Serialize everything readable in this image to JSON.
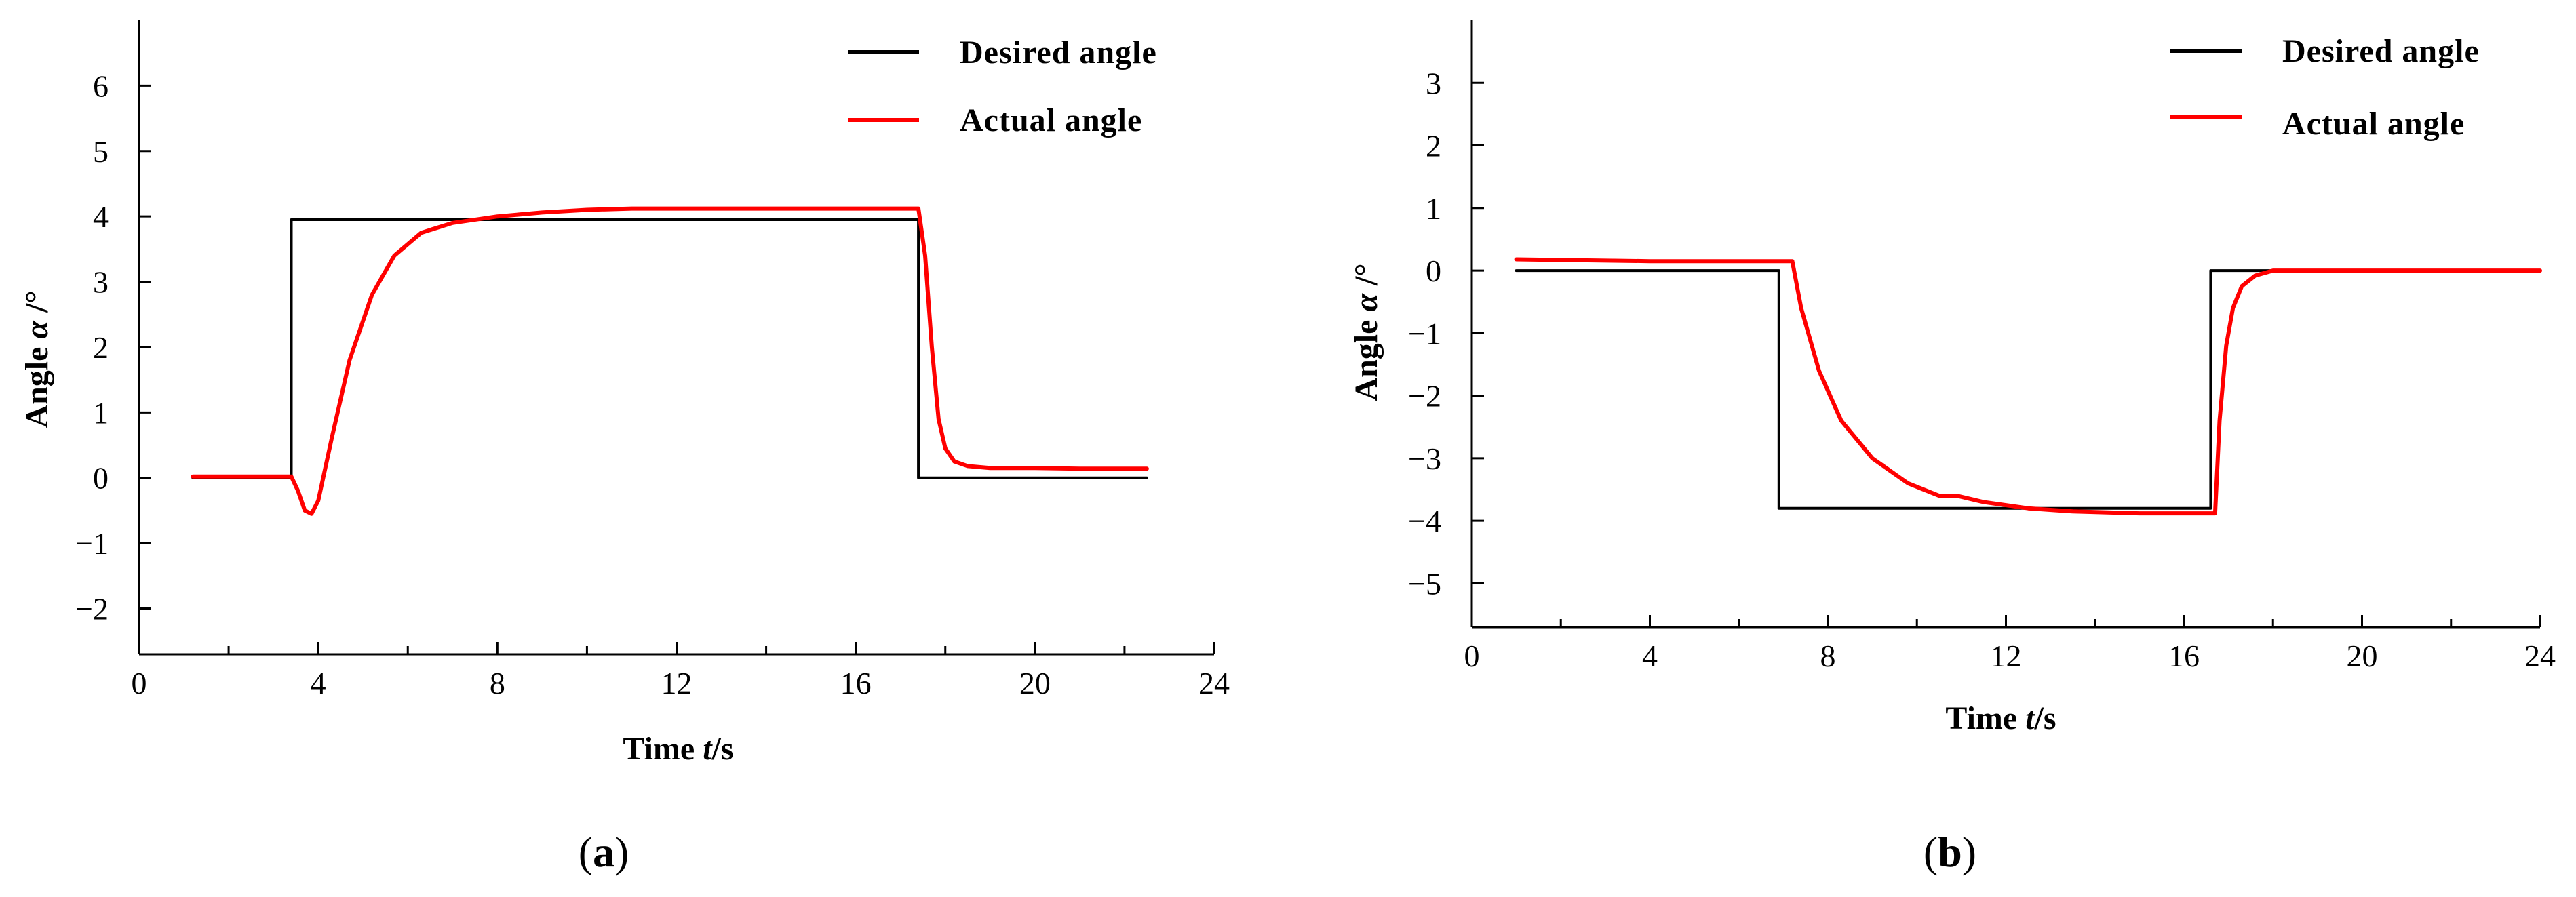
{
  "chart_data": [
    {
      "panel": "(a)",
      "type": "line",
      "xlabel": {
        "main": "Time ",
        "var": "t",
        "unit": "/s"
      },
      "ylabel": {
        "main": "Angle ",
        "var": "α",
        "unit": " /°"
      },
      "xlim": [
        0,
        24
      ],
      "ylim": [
        -2.7,
        7
      ],
      "xticks": [
        0,
        4,
        8,
        12,
        16,
        20,
        24
      ],
      "yticks": [
        -2,
        -1,
        0,
        1,
        2,
        3,
        4,
        5,
        6
      ],
      "legend": {
        "position": "top-right",
        "entries": [
          "Desired angle",
          "Actual angle"
        ]
      },
      "series": [
        {
          "name": "Desired angle",
          "color": "#000000",
          "x": [
            1.2,
            3.4,
            3.4,
            17.4,
            17.4,
            22.5
          ],
          "y": [
            0,
            0,
            3.95,
            3.95,
            0,
            0
          ]
        },
        {
          "name": "Actual angle",
          "color": "#ff0000",
          "x": [
            1.2,
            3.4,
            3.55,
            3.7,
            3.85,
            4.0,
            4.3,
            4.7,
            5.2,
            5.7,
            6.3,
            7.0,
            8.0,
            9.0,
            10.0,
            11.0,
            12.0,
            14.0,
            16.0,
            17.4,
            17.55,
            17.7,
            17.85,
            18.0,
            18.2,
            18.5,
            19.0,
            20.0,
            21.0,
            22.5
          ],
          "y": [
            0.02,
            0.02,
            -0.2,
            -0.5,
            -0.55,
            -0.35,
            0.6,
            1.8,
            2.8,
            3.4,
            3.75,
            3.9,
            4.0,
            4.06,
            4.1,
            4.12,
            4.12,
            4.12,
            4.12,
            4.12,
            3.4,
            2.0,
            0.9,
            0.45,
            0.25,
            0.18,
            0.15,
            0.15,
            0.14,
            0.14
          ]
        }
      ]
    },
    {
      "panel": "(b)",
      "type": "line",
      "xlabel": {
        "main": "Time ",
        "var": "t",
        "unit": "/s"
      },
      "ylabel": {
        "main": "Angle ",
        "var": "α",
        "unit": " /°"
      },
      "xlim": [
        0,
        24
      ],
      "ylim": [
        -5.7,
        4
      ],
      "xticks": [
        0,
        4,
        8,
        12,
        16,
        20,
        24
      ],
      "yticks": [
        -5,
        -4,
        -3,
        -2,
        -1,
        0,
        1,
        2,
        3
      ],
      "legend": {
        "position": "top-right",
        "entries": [
          "Desired angle",
          "Actual angle"
        ]
      },
      "series": [
        {
          "name": "Desired angle",
          "color": "#000000",
          "x": [
            1.0,
            6.9,
            6.9,
            16.6,
            16.6,
            24
          ],
          "y": [
            0,
            0,
            -3.8,
            -3.8,
            0,
            0
          ]
        },
        {
          "name": "Actual angle",
          "color": "#ff0000",
          "x": [
            1.0,
            4.0,
            7.2,
            7.4,
            7.8,
            8.3,
            9.0,
            9.8,
            10.5,
            10.9,
            11.5,
            12.5,
            13.5,
            15.0,
            16.7,
            16.8,
            16.95,
            17.1,
            17.3,
            17.6,
            18.0,
            20.0,
            24.0
          ],
          "y": [
            0.18,
            0.15,
            0.15,
            -0.6,
            -1.6,
            -2.4,
            -3.0,
            -3.4,
            -3.6,
            -3.6,
            -3.7,
            -3.8,
            -3.85,
            -3.88,
            -3.88,
            -2.4,
            -1.2,
            -0.6,
            -0.25,
            -0.08,
            0.0,
            0.0,
            0.0
          ]
        }
      ]
    }
  ]
}
